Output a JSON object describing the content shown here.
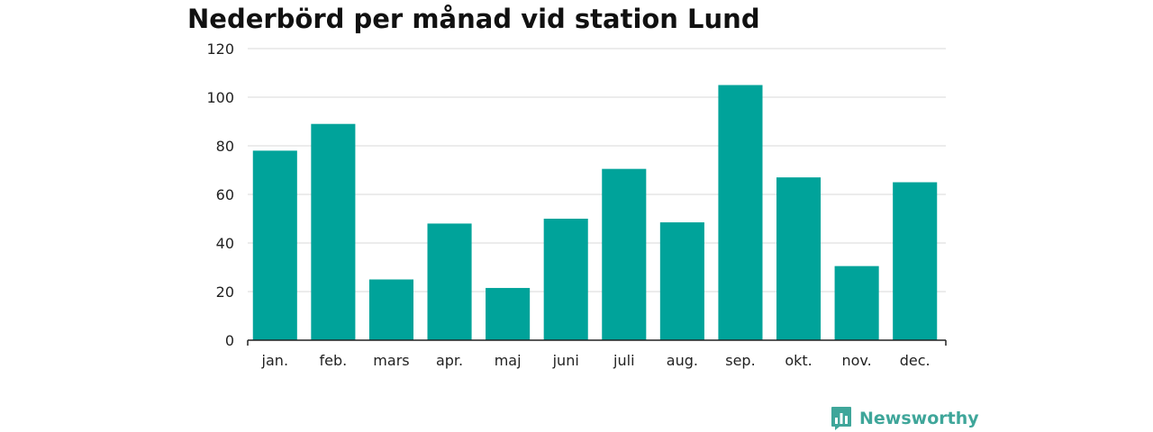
{
  "chart_data": {
    "type": "bar",
    "title": "Nederbörd per månad vid station Lund",
    "xlabel": "",
    "ylabel": "",
    "categories": [
      "jan.",
      "feb.",
      "mars",
      "apr.",
      "maj",
      "juni",
      "juli",
      "aug.",
      "sep.",
      "okt.",
      "nov.",
      "dec."
    ],
    "values": [
      78,
      89,
      25,
      48,
      21.5,
      50,
      70.5,
      48.5,
      105,
      67,
      30.5,
      65
    ],
    "ylim": [
      0,
      120
    ],
    "yticks": [
      0,
      20,
      40,
      60,
      80,
      100,
      120
    ],
    "grid": true,
    "legend": "none",
    "bar_color": "#00a39a"
  },
  "branding": {
    "logo_text": "Newsworthy",
    "logo_color": "#3fa69a",
    "logo_icon": "bar-chart-speech-bubble-icon"
  }
}
